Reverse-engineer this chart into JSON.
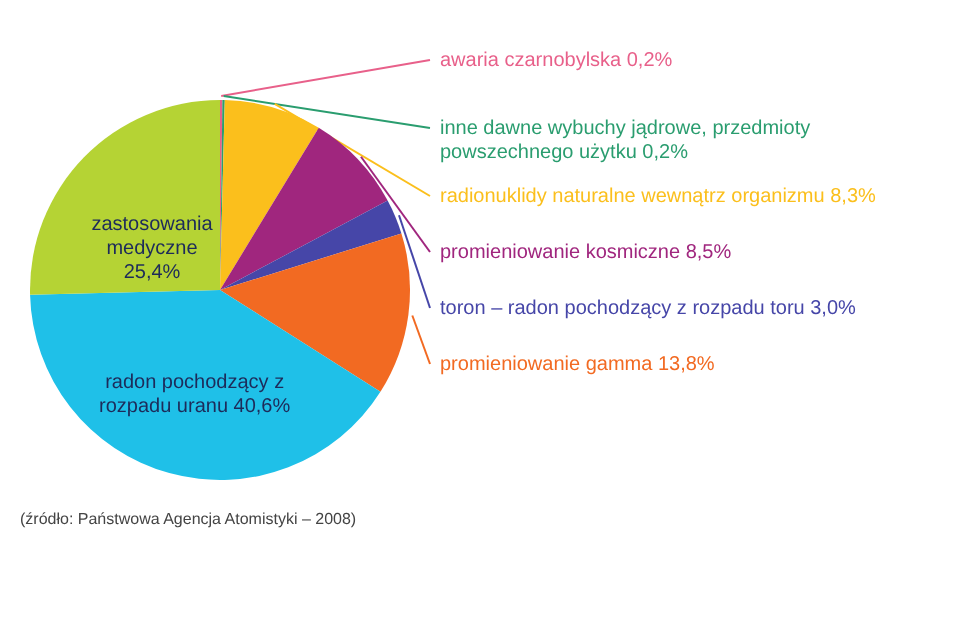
{
  "chart_data": {
    "type": "pie",
    "categories": [
      "awaria czarnobylska 0,2%",
      "inne dawne wybuchy jądrowe, przedmioty powszechnego użytku 0,2%",
      "radionuklidy naturalne wewnątrz organizmu 8,3%",
      "promieniowanie kosmiczne 8,5%",
      "toron – radon pochodzący z rozpadu toru 3,0%",
      "promieniowanie gamma 13,8%",
      "radon pochodzący z rozpadu uranu 40,6%",
      "zastosowania medyczne 25,4%"
    ],
    "values": [
      0.2,
      0.2,
      8.3,
      8.5,
      3.0,
      13.8,
      40.6,
      25.4
    ],
    "colors": [
      "#e8608a",
      "#2a9d6f",
      "#fbbf1c",
      "#a0267e",
      "#4646a8",
      "#f26a22",
      "#1fc0e8",
      "#b5d334"
    ],
    "annotations": [
      "(źródło: Państwowa Agencja Atomistyki – 2008)"
    ]
  }
}
